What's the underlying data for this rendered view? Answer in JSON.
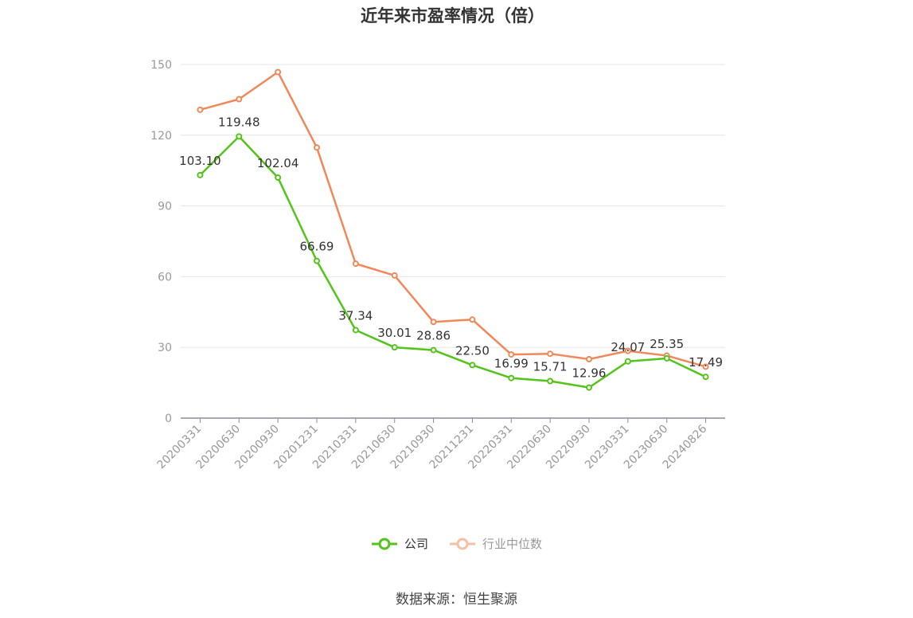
{
  "chart_data": {
    "type": "line",
    "title": "近年来市盈率情况（倍）",
    "categories": [
      "20200331",
      "20200630",
      "20200930",
      "20201231",
      "20210331",
      "20210630",
      "20210930",
      "20211231",
      "20220331",
      "20220630",
      "20220930",
      "20230331",
      "20230630",
      "20240826"
    ],
    "series": [
      {
        "name": "公司",
        "color": "#52c41a",
        "values": [
          103.1,
          119.48,
          102.04,
          66.69,
          37.34,
          30.01,
          28.86,
          22.5,
          16.99,
          15.71,
          12.96,
          24.07,
          25.35,
          17.49
        ],
        "labels": [
          "103.10",
          "119.48",
          "102.04",
          "66.69",
          "37.34",
          "30.01",
          "28.86",
          "22.50",
          "16.99",
          "15.71",
          "12.96",
          "24.07",
          "25.35",
          "17.49"
        ]
      },
      {
        "name": "行业中位数",
        "color": "#f0885a",
        "values": [
          130.8,
          135.3,
          146.8,
          114.8,
          65.5,
          60.5,
          40.8,
          41.8,
          27.0,
          27.3,
          25.0,
          28.5,
          26.5,
          21.8
        ]
      }
    ],
    "ylim": [
      0,
      150
    ],
    "yticks": [
      0,
      30,
      60,
      90,
      120,
      150
    ],
    "grid": true,
    "legend_position": "bottom"
  },
  "source": "数据来源：恒生聚源"
}
